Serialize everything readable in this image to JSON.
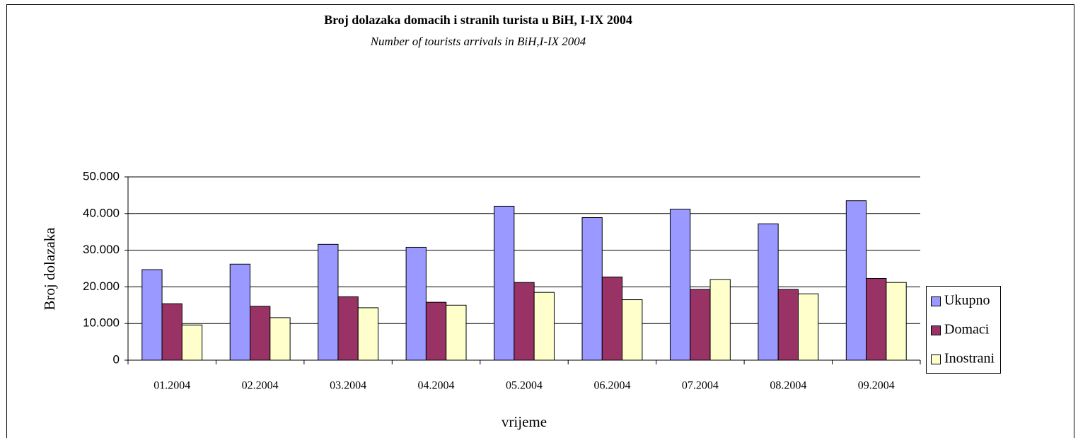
{
  "chart_data": {
    "type": "bar",
    "title": "Broj dolazaka domacih i stranih turista u BiH, I-IX 2004",
    "subtitle": "Number of tourists arrivals in BiH,I-IX 2004",
    "x_label": "vrijeme",
    "y_label": "Broj dolazaka",
    "categories": [
      "01.2004",
      "02.2004",
      "03.2004",
      "04.2004",
      "05.2004",
      "06.2004",
      "07.2004",
      "08.2004",
      "09.2004"
    ],
    "series": [
      {
        "name": "Ukupno",
        "color": "#9999ff",
        "values": [
          24700,
          26200,
          31600,
          30800,
          42000,
          38900,
          41200,
          37200,
          43500
        ]
      },
      {
        "name": "Domaci",
        "color": "#993366",
        "values": [
          15400,
          14700,
          17300,
          15800,
          21200,
          22700,
          19300,
          19300,
          22300
        ]
      },
      {
        "name": "Inostrani",
        "color": "#ffffcc",
        "values": [
          9600,
          11600,
          14300,
          15000,
          18500,
          16500,
          22000,
          18100,
          21200
        ]
      }
    ],
    "ylim": [
      0,
      50000
    ],
    "yticks": [
      0,
      {
        "value": 10000,
        "label": "10.000"
      },
      {
        "value": 20000,
        "label": "20.000"
      },
      {
        "value": 30000,
        "label": "30.000"
      },
      {
        "value": 40000,
        "label": "40.000"
      },
      {
        "value": 50000,
        "label": "50.000"
      }
    ],
    "grid": true,
    "legend": "right"
  }
}
